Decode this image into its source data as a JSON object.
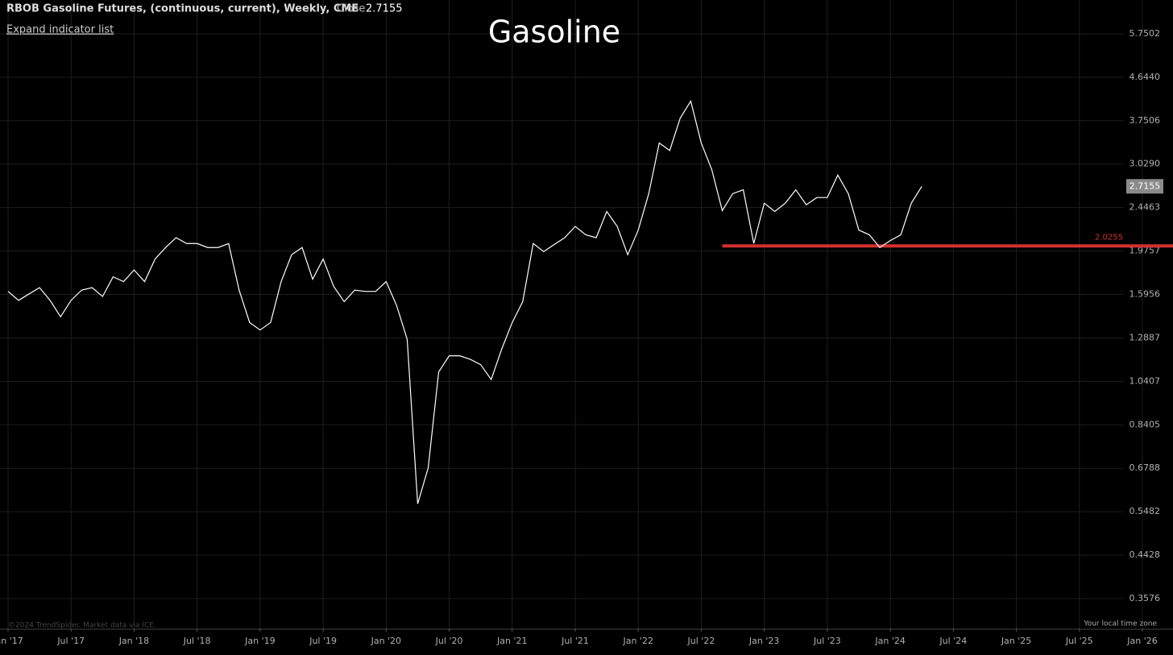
{
  "header": {
    "symbol": "RBOB Gasoline Futures, (continuous, current), Weekly, CME",
    "close_label": "Close",
    "expand": "Expand indicator list"
  },
  "footer": {
    "credit": "©2024 TrendSpider. Market data via ICE.",
    "timezone": "Your local time zone"
  },
  "chart_data": {
    "type": "line",
    "title": "Gasoline",
    "color": "#ffffff",
    "log_scale": true,
    "grid": true,
    "x": [
      "2017-01",
      "2017-02",
      "2017-03",
      "2017-04",
      "2017-05",
      "2017-06",
      "2017-07",
      "2017-08",
      "2017-09",
      "2017-10",
      "2017-11",
      "2017-12",
      "2018-01",
      "2018-02",
      "2018-03",
      "2018-04",
      "2018-05",
      "2018-06",
      "2018-07",
      "2018-08",
      "2018-09",
      "2018-10",
      "2018-11",
      "2018-12",
      "2019-01",
      "2019-02",
      "2019-03",
      "2019-04",
      "2019-05",
      "2019-06",
      "2019-07",
      "2019-08",
      "2019-09",
      "2019-10",
      "2019-11",
      "2019-12",
      "2020-01",
      "2020-02",
      "2020-03",
      "2020-04",
      "2020-05",
      "2020-06",
      "2020-07",
      "2020-08",
      "2020-09",
      "2020-10",
      "2020-11",
      "2020-12",
      "2021-01",
      "2021-02",
      "2021-03",
      "2021-04",
      "2021-05",
      "2021-06",
      "2021-07",
      "2021-08",
      "2021-09",
      "2021-10",
      "2021-11",
      "2021-12",
      "2022-01",
      "2022-02",
      "2022-03",
      "2022-04",
      "2022-05",
      "2022-06",
      "2022-07",
      "2022-08",
      "2022-09",
      "2022-10",
      "2022-11",
      "2022-12",
      "2023-01",
      "2023-02",
      "2023-03",
      "2023-04",
      "2023-05",
      "2023-06",
      "2023-07",
      "2023-08",
      "2023-09",
      "2023-10",
      "2023-11",
      "2023-12",
      "2024-01",
      "2024-02",
      "2024-03",
      "2024-04"
    ],
    "values": [
      1.62,
      1.55,
      1.6,
      1.65,
      1.55,
      1.43,
      1.55,
      1.63,
      1.65,
      1.58,
      1.74,
      1.7,
      1.8,
      1.7,
      1.9,
      2.01,
      2.11,
      2.05,
      2.05,
      2.01,
      2.01,
      2.05,
      1.63,
      1.39,
      1.34,
      1.39,
      1.7,
      1.94,
      2.01,
      1.72,
      1.9,
      1.66,
      1.54,
      1.63,
      1.62,
      1.62,
      1.7,
      1.51,
      1.28,
      0.57,
      0.68,
      1.09,
      1.18,
      1.18,
      1.16,
      1.13,
      1.05,
      1.22,
      1.39,
      1.54,
      2.05,
      1.97,
      2.04,
      2.11,
      2.23,
      2.14,
      2.11,
      2.4,
      2.23,
      1.94,
      2.19,
      2.62,
      3.36,
      3.24,
      3.8,
      4.13,
      3.36,
      2.95,
      2.41,
      2.62,
      2.67,
      2.05,
      2.5,
      2.4,
      2.5,
      2.67,
      2.48,
      2.57,
      2.57,
      2.87,
      2.62,
      2.19,
      2.14,
      2.01,
      2.08,
      2.14,
      2.5,
      2.7155
    ],
    "xlim": [
      "2017-01",
      "2026-01"
    ],
    "xticks": [
      {
        "value": "2017-01",
        "label": "Jan '17"
      },
      {
        "value": "2017-07",
        "label": "Jul '17"
      },
      {
        "value": "2018-01",
        "label": "Jan '18"
      },
      {
        "value": "2018-07",
        "label": "Jul '18"
      },
      {
        "value": "2019-01",
        "label": "Jan '19"
      },
      {
        "value": "2019-07",
        "label": "Jul '19"
      },
      {
        "value": "2020-01",
        "label": "Jan '20"
      },
      {
        "value": "2020-07",
        "label": "Jul '20"
      },
      {
        "value": "2021-01",
        "label": "Jan '21"
      },
      {
        "value": "2021-07",
        "label": "Jul '21"
      },
      {
        "value": "2022-01",
        "label": "Jan '22"
      },
      {
        "value": "2022-07",
        "label": "Jul '22"
      },
      {
        "value": "2023-01",
        "label": "Jan '23"
      },
      {
        "value": "2023-07",
        "label": "Jul '23"
      },
      {
        "value": "2024-01",
        "label": "Jan '24"
      },
      {
        "value": "2024-07",
        "label": "Jul '24"
      },
      {
        "value": "2025-01",
        "label": "Jan '25"
      },
      {
        "value": "2025-07",
        "label": "Jul '25"
      },
      {
        "value": "2026-01",
        "label": "Jan '26"
      }
    ],
    "ylim": [
      0.3088,
      6.79
    ],
    "yticks": [
      5.7502,
      {
        "value": 4.644,
        "label": "4.6440"
      },
      3.7506,
      {
        "value": 3.029,
        "label": "3.0290"
      },
      2.4463,
      1.9757,
      1.5956,
      1.2887,
      1.0407,
      0.8405,
      0.6788,
      0.5482,
      0.4428,
      0.3576
    ],
    "level": {
      "value": 2.0255,
      "color": "#d32f2f",
      "start": "2022-09"
    }
  }
}
